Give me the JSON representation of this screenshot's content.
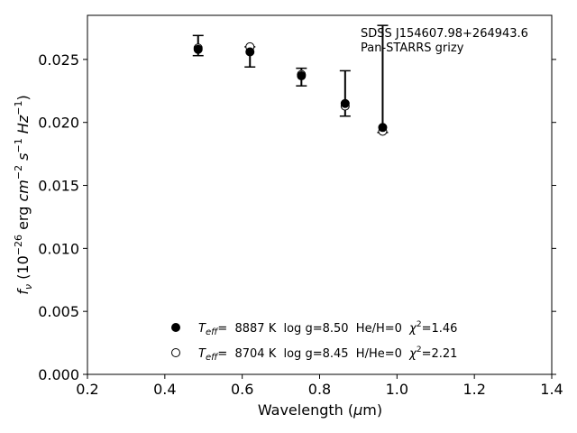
{
  "chart_data": {
    "type": "scatter",
    "xlabel_main": "Wavelength (",
    "xlabel_mu": "μ",
    "xlabel_unit": "m)",
    "ylabel_parts": {
      "f": "f",
      "nu": "ν",
      "open": " (10",
      "exp1": "−26",
      "erg": " erg ",
      "cm": "cm",
      "exp2": "−2",
      "s": " s",
      "exp3": "−1",
      "hz": " Hz",
      "exp4": "−1",
      "close": ")"
    },
    "annotations": [
      "SDSS J154607.98+264943.6",
      "Pan-STARRS grizy"
    ],
    "xlim": [
      0.2,
      1.4
    ],
    "ylim": [
      0.0,
      0.0285
    ],
    "xticks": [
      "0.2",
      "0.4",
      "0.6",
      "0.8",
      "1.0",
      "1.2",
      "1.4"
    ],
    "yticks": [
      "0.000",
      "0.005",
      "0.010",
      "0.015",
      "0.020",
      "0.025"
    ],
    "observed": {
      "x": [
        0.486,
        0.62,
        0.753,
        0.866,
        0.963
      ],
      "y": [
        0.0259,
        0.0258,
        0.0236,
        0.0214,
        0.0196
      ],
      "err_low": [
        0.0006,
        0.0014,
        0.0007,
        0.0009,
        0.0004
      ],
      "err_high": [
        0.001,
        0.0002,
        0.0007,
        0.0027,
        0.0081
      ]
    },
    "series": [
      {
        "marker": "filled-circle",
        "x": [
          0.486,
          0.62,
          0.753,
          0.866,
          0.963
        ],
        "values": [
          0.0258,
          0.0256,
          0.0237,
          0.0215,
          0.0196
        ],
        "legend_parts": {
          "T": "T",
          "sub": "eff",
          "text": "=  8887 K  log g=8.50  He/H=0  ",
          "chi": "χ",
          "sup": "2",
          "end": "=1.46"
        }
      },
      {
        "marker": "open-circle",
        "x": [
          0.486,
          0.62,
          0.753,
          0.866,
          0.963
        ],
        "values": [
          0.0259,
          0.026,
          0.0238,
          0.0213,
          0.0193
        ],
        "legend_parts": {
          "T": "T",
          "sub": "eff",
          "text": "=  8704 K  log g=8.45  H/He=0  ",
          "chi": "χ",
          "sup": "2",
          "end": "=2.21"
        }
      }
    ],
    "grid": false,
    "legend_placement": "lower-center"
  }
}
